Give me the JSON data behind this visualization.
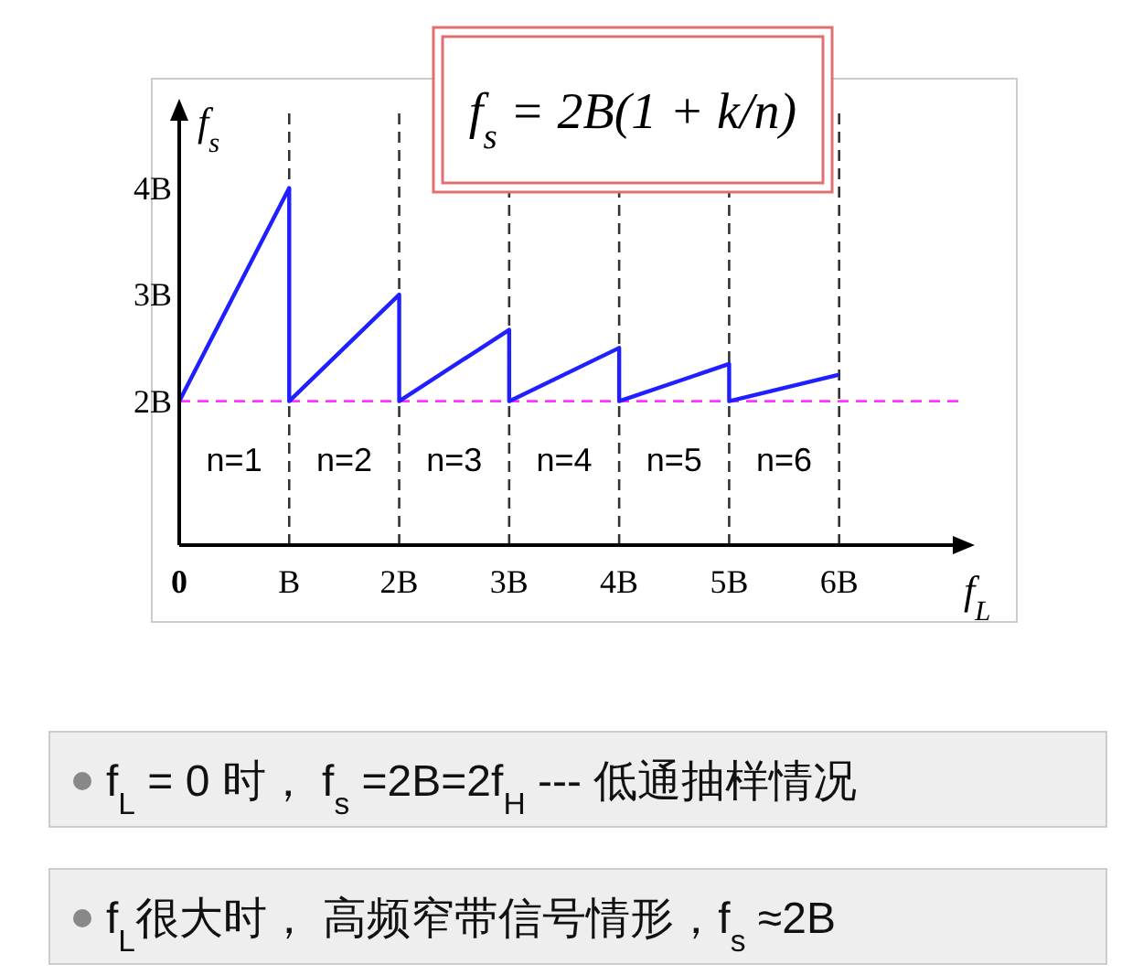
{
  "chart_data": {
    "type": "line",
    "title": "f$_{s}$ = 2B(1 + k/n)",
    "xlabel": "f$_{L}$",
    "ylabel": "f$_{s}$",
    "xlim": [
      0,
      7.1
    ],
    "ylim": [
      0.65,
      4.7
    ],
    "xticks": [
      0,
      {
        "value": 1,
        "label": "B"
      },
      {
        "value": 2,
        "label": "2B"
      },
      {
        "value": 3,
        "label": "3B"
      },
      {
        "value": 4,
        "label": "4B"
      },
      {
        "value": 5,
        "label": "5B"
      },
      {
        "value": 6,
        "label": "6B"
      }
    ],
    "yticks": [
      {
        "value": 2,
        "label": "2B"
      },
      {
        "value": 3,
        "label": "3B"
      },
      {
        "value": 4,
        "label": "4B"
      }
    ],
    "series": [
      {
        "color": "#1f1fff",
        "x": [
          0,
          1,
          1,
          2,
          2,
          3,
          3,
          4,
          4,
          5,
          5,
          6
        ],
        "values": [
          2,
          4,
          2,
          3,
          2,
          2.67,
          2,
          2.5,
          2,
          2.35,
          2,
          2.25
        ]
      }
    ],
    "ref_lines": [
      {
        "axis": "y",
        "value": 2,
        "color": "#ff33ff",
        "line_style": "dashed"
      },
      {
        "axis": "x",
        "value": 1,
        "color": "#333333",
        "line_style": "dashed"
      },
      {
        "axis": "x",
        "value": 2,
        "color": "#333333",
        "line_style": "dashed"
      },
      {
        "axis": "x",
        "value": 3,
        "color": "#333333",
        "line_style": "dashed"
      },
      {
        "axis": "x",
        "value": 4,
        "color": "#333333",
        "line_style": "dashed"
      },
      {
        "axis": "x",
        "value": 5,
        "color": "#333333",
        "line_style": "dashed"
      },
      {
        "axis": "x",
        "value": 6,
        "color": "#333333",
        "line_style": "dashed"
      }
    ],
    "annotations": [
      "n=1",
      "n=2",
      "n=3",
      "n=4",
      "n=5",
      "n=6",
      "f$_{L}$ = 0 时， f$_{s}$ =2B=2f$_{H}$ --- 低通抽样情况",
      "f$_{L}$很大时， 高频窄带信号情形，f$_{s}$ ≈2B"
    ]
  }
}
